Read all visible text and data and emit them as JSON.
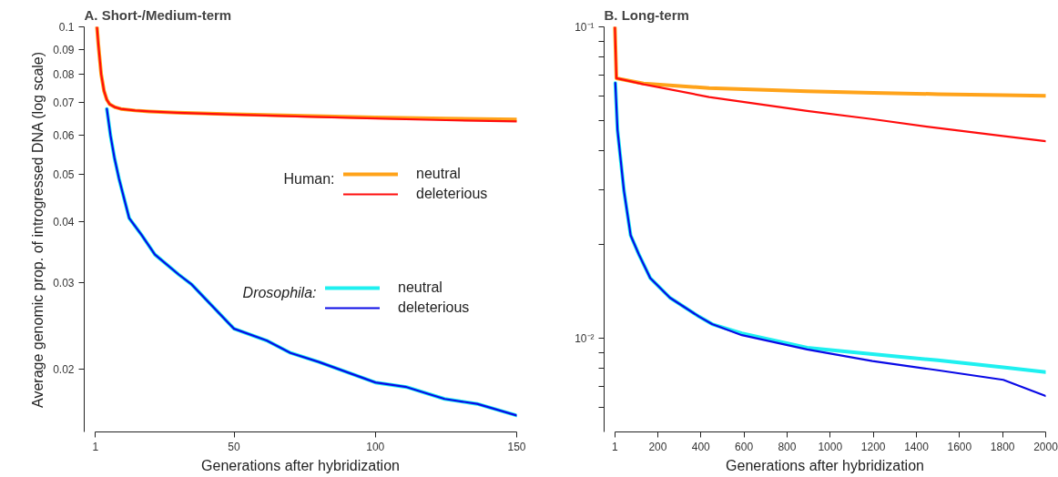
{
  "chart_data": [
    {
      "type": "line",
      "title": "A.  Short-/Medium-term",
      "xlabel": "Generations after hybridization",
      "ylabel": "Average genomic prop. of introgressed DNA (log scale)",
      "log": "y",
      "xlim": [
        -3,
        150
      ],
      "xticks": [
        1,
        50,
        100,
        150
      ],
      "ylim": [
        0.0149,
        0.1
      ],
      "yticks": [
        0.1,
        0.09,
        0.08,
        0.07,
        0.06,
        0.05,
        0.04,
        0.03,
        0.02
      ],
      "legend": "right",
      "annotations": [
        "Human:",
        "Drosophila:"
      ],
      "series": [
        {
          "name": "neutral",
          "color": "#ffa31a",
          "x": [
            1.5,
            2,
            3,
            4,
            5,
            6,
            8,
            10,
            15,
            20,
            30,
            50,
            75,
            100,
            125,
            150
          ],
          "values": [
            0.1,
            0.092,
            0.08,
            0.074,
            0.071,
            0.0695,
            0.0685,
            0.068,
            0.0675,
            0.0672,
            0.0668,
            0.0663,
            0.0658,
            0.0653,
            0.065,
            0.0647
          ]
        },
        {
          "name": "deleterious",
          "color": "#ff0d0d",
          "x": [
            1.5,
            2,
            3,
            4,
            5,
            6,
            8,
            10,
            15,
            20,
            30,
            50,
            75,
            100,
            125,
            150
          ],
          "values": [
            0.1,
            0.092,
            0.08,
            0.074,
            0.071,
            0.0695,
            0.0685,
            0.068,
            0.0675,
            0.0672,
            0.0668,
            0.0662,
            0.0656,
            0.065,
            0.0645,
            0.0641
          ]
        },
        {
          "name": "neutral",
          "color": "#1ff0f0",
          "x": [
            5,
            6.3,
            7.7,
            9.3,
            12.9,
            17.3,
            22,
            30.5,
            35,
            50,
            61.5,
            70,
            80,
            100,
            111,
            124.5,
            136,
            150
          ],
          "values": [
            0.068,
            0.06,
            0.054,
            0.049,
            0.0407,
            0.0376,
            0.0343,
            0.0312,
            0.0298,
            0.0242,
            0.0229,
            0.0216,
            0.0207,
            0.0188,
            0.0184,
            0.0174,
            0.017,
            0.0161
          ]
        },
        {
          "name": "deleterious",
          "color": "#0a0ae6",
          "x": [
            5,
            6.3,
            7.7,
            9.3,
            12.9,
            17.3,
            22,
            30.5,
            35,
            50,
            61.5,
            70,
            80,
            100,
            111,
            124.5,
            136,
            150
          ],
          "values": [
            0.068,
            0.06,
            0.054,
            0.049,
            0.0407,
            0.0376,
            0.0343,
            0.0312,
            0.0298,
            0.0242,
            0.0229,
            0.0216,
            0.0207,
            0.0188,
            0.0184,
            0.0174,
            0.017,
            0.0161
          ]
        }
      ]
    },
    {
      "type": "line",
      "title": "B.  Long-term",
      "xlabel": "Generations after hybridization",
      "log": "y",
      "xlim": [
        -49,
        2000
      ],
      "xticks": [
        1,
        200,
        400,
        600,
        800,
        1000,
        1200,
        1400,
        1600,
        1800,
        2000
      ],
      "ylim": [
        0.005,
        0.1
      ],
      "yticks": [
        {
          "value": 0.1,
          "label": "10⁻¹"
        },
        {
          "value": 0.09,
          "label": null
        },
        {
          "value": 0.08,
          "label": null
        },
        {
          "value": 0.07,
          "label": null
        },
        {
          "value": 0.06,
          "label": null
        },
        {
          "value": 0.05,
          "label": null
        },
        {
          "value": 0.04,
          "label": null
        },
        {
          "value": 0.03,
          "label": null
        },
        {
          "value": 0.02,
          "label": null
        },
        {
          "value": 0.01,
          "label": "10⁻²"
        },
        {
          "value": 0.009,
          "label": null
        },
        {
          "value": 0.008,
          "label": null
        },
        {
          "value": 0.007,
          "label": null
        },
        {
          "value": 0.006,
          "label": null
        }
      ],
      "series": [
        {
          "color": "#ffa31a",
          "x": [
            1,
            8,
            134,
            438,
            893,
            1200,
            1500,
            1800,
            2000
          ],
          "values": [
            0.1,
            0.0684,
            0.0658,
            0.0636,
            0.0621,
            0.0614,
            0.0608,
            0.0604,
            0.0601
          ]
        },
        {
          "color": "#ff0d0d",
          "x": [
            1,
            8,
            134,
            438,
            893,
            1200,
            1500,
            1800,
            2000
          ],
          "values": [
            0.1,
            0.0684,
            0.0654,
            0.0595,
            0.0537,
            0.0505,
            0.0473,
            0.0446,
            0.0429
          ]
        },
        {
          "color": "#1ff0f0",
          "x": [
            3,
            13,
            43,
            74,
            112,
            165,
            256,
            392,
            452,
            590,
            893,
            1196,
            1500,
            1803,
            2000
          ],
          "values": [
            0.066,
            0.0467,
            0.0298,
            0.0214,
            0.0186,
            0.0156,
            0.0135,
            0.01173,
            0.0111,
            0.01036,
            0.00932,
            0.00889,
            0.00849,
            0.00807,
            0.00778
          ]
        },
        {
          "color": "#0a0ae6",
          "x": [
            3,
            13,
            43,
            74,
            112,
            165,
            256,
            392,
            452,
            590,
            893,
            1196,
            1500,
            1803,
            2000
          ],
          "values": [
            0.066,
            0.0467,
            0.0298,
            0.0214,
            0.0186,
            0.0156,
            0.0135,
            0.01173,
            0.0111,
            0.01023,
            0.0092,
            0.00845,
            0.00789,
            0.00735,
            0.00652
          ]
        }
      ]
    }
  ]
}
